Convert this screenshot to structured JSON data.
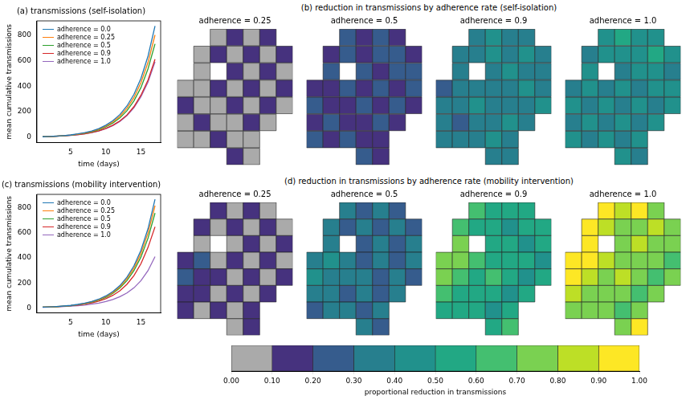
{
  "chart_data": [
    {
      "type": "line",
      "title": "(a) transmissions (self-isolation)",
      "x_label": "time (days)",
      "y_label": "mean cumulative transmissions",
      "x": [
        1,
        2,
        3,
        4,
        5,
        6,
        7,
        8,
        9,
        10,
        11,
        12,
        13,
        14,
        15,
        16,
        17
      ],
      "xlim": [
        0.2,
        17.8
      ],
      "xticks": [
        5,
        10,
        15
      ],
      "ylim": [
        -40,
        910
      ],
      "yticks": [
        0,
        200,
        400,
        600,
        800
      ],
      "legend": "upper left",
      "grid": false,
      "series": [
        {
          "name": "adherence = 0.0",
          "color": "#1f77b4",
          "values": [
            5,
            7,
            10,
            14,
            19,
            27,
            37,
            50,
            69,
            95,
            130,
            178,
            245,
            336,
            462,
            634,
            870
          ]
        },
        {
          "name": "adherence = 0.25",
          "color": "#ff7f0e",
          "values": [
            5,
            7,
            10,
            13,
            18,
            25,
            34,
            47,
            64,
            88,
            121,
            165,
            227,
            311,
            428,
            585,
            800
          ]
        },
        {
          "name": "adherence = 0.5",
          "color": "#2ca02c",
          "values": [
            5,
            7,
            9,
            13,
            17,
            24,
            32,
            44,
            59,
            82,
            112,
            152,
            208,
            285,
            390,
            535,
            730
          ]
        },
        {
          "name": "adherence = 0.9",
          "color": "#d62728",
          "values": [
            5,
            6,
            9,
            12,
            16,
            21,
            28,
            38,
            51,
            70,
            95,
            129,
            175,
            240,
            330,
            447,
            610
          ]
        },
        {
          "name": "adherence = 1.0",
          "color": "#9467bd",
          "values": [
            5,
            6,
            9,
            12,
            15,
            20,
            27,
            37,
            50,
            68,
            92,
            125,
            170,
            232,
            318,
            432,
            590
          ]
        }
      ]
    },
    {
      "type": "heatmap",
      "title": "(b) reduction in transmissions by adherence rate (self-isolation)",
      "panels": [
        {
          "title": "adherence = 0.25",
          "cells": [
            [
              null,
              null,
              0.05,
              0.15,
              0.05,
              0.15,
              null
            ],
            [
              null,
              0.05,
              0.15,
              0.05,
              0.15,
              0.05,
              0.15
            ],
            [
              null,
              0.05,
              null,
              0.15,
              0.05,
              0.15,
              0.05
            ],
            [
              0.05,
              0.05,
              0.15,
              0.05,
              0.15,
              0.05,
              0.15
            ],
            [
              0.15,
              0.05,
              0.05,
              0.15,
              0.05,
              0.15,
              0.05
            ],
            [
              0.05,
              0.15,
              0.05,
              0.05,
              0.15,
              0.05,
              null
            ],
            [
              0.05,
              0.05,
              0.15,
              0.05,
              0.05,
              null,
              null
            ],
            [
              null,
              null,
              null,
              0.15,
              0.05,
              null,
              null
            ]
          ]
        },
        {
          "title": "adherence = 0.5",
          "cells": [
            [
              null,
              null,
              0.25,
              0.15,
              0.25,
              0.15,
              null
            ],
            [
              null,
              0.15,
              0.25,
              0.15,
              0.25,
              0.25,
              0.15
            ],
            [
              null,
              0.25,
              null,
              0.25,
              0.15,
              0.25,
              0.25
            ],
            [
              0.15,
              0.15,
              0.25,
              0.15,
              0.25,
              0.15,
              0.25
            ],
            [
              0.25,
              0.15,
              0.15,
              0.25,
              0.15,
              0.25,
              0.15
            ],
            [
              0.15,
              0.25,
              0.15,
              0.15,
              0.25,
              0.15,
              null
            ],
            [
              0.25,
              0.15,
              0.25,
              0.15,
              0.15,
              null,
              null
            ],
            [
              null,
              null,
              null,
              0.25,
              0.15,
              null,
              null
            ]
          ]
        },
        {
          "title": "adherence = 0.9",
          "cells": [
            [
              null,
              null,
              0.35,
              0.45,
              0.35,
              0.35,
              null
            ],
            [
              null,
              0.35,
              0.35,
              0.45,
              0.35,
              0.45,
              0.35
            ],
            [
              null,
              0.35,
              null,
              0.35,
              0.45,
              0.35,
              0.35
            ],
            [
              0.25,
              0.35,
              0.35,
              0.35,
              0.35,
              0.45,
              0.35
            ],
            [
              0.35,
              0.35,
              0.45,
              0.35,
              0.35,
              0.35,
              0.45
            ],
            [
              0.35,
              0.25,
              0.35,
              0.35,
              0.45,
              0.35,
              null
            ],
            [
              0.35,
              0.35,
              0.35,
              0.45,
              0.35,
              null,
              null
            ],
            [
              null,
              null,
              null,
              0.35,
              0.35,
              null,
              null
            ]
          ]
        },
        {
          "title": "adherence = 1.0",
          "cells": [
            [
              null,
              null,
              0.45,
              0.55,
              0.45,
              0.45,
              null
            ],
            [
              null,
              0.35,
              0.45,
              0.45,
              0.45,
              0.55,
              0.45
            ],
            [
              null,
              0.45,
              null,
              0.35,
              0.45,
              0.45,
              0.35
            ],
            [
              0.35,
              0.45,
              0.35,
              0.45,
              0.35,
              0.45,
              0.45
            ],
            [
              0.45,
              0.35,
              0.45,
              0.35,
              0.45,
              0.35,
              0.45
            ],
            [
              0.35,
              0.45,
              0.35,
              0.45,
              0.35,
              0.45,
              null
            ],
            [
              0.45,
              0.35,
              0.45,
              0.35,
              0.45,
              null,
              null
            ],
            [
              null,
              null,
              null,
              0.45,
              0.35,
              null,
              null
            ]
          ]
        }
      ]
    },
    {
      "type": "line",
      "title": "(c) transmissions (mobility intervention)",
      "x_label": "time (days)",
      "y_label": "mean cumulative transmissions",
      "x": [
        1,
        2,
        3,
        4,
        5,
        6,
        7,
        8,
        9,
        10,
        11,
        12,
        13,
        14,
        15,
        16,
        17
      ],
      "xlim": [
        0.2,
        17.8
      ],
      "xticks": [
        5,
        10,
        15
      ],
      "ylim": [
        -40,
        910
      ],
      "yticks": [
        0,
        200,
        400,
        600,
        800
      ],
      "legend": "upper left",
      "grid": false,
      "series": [
        {
          "name": "adherence = 0.0",
          "color": "#1f77b4",
          "values": [
            5,
            7,
            10,
            14,
            19,
            27,
            37,
            50,
            69,
            95,
            130,
            178,
            245,
            336,
            462,
            634,
            870
          ]
        },
        {
          "name": "adherence = 0.25",
          "color": "#ff7f0e",
          "values": [
            5,
            7,
            10,
            13,
            18,
            25,
            35,
            48,
            65,
            90,
            123,
            169,
            232,
            318,
            437,
            600,
            820
          ]
        },
        {
          "name": "adherence = 0.5",
          "color": "#2ca02c",
          "values": [
            5,
            7,
            9,
            13,
            17,
            24,
            33,
            45,
            61,
            84,
            116,
            159,
            218,
            298,
            408,
            558,
            760
          ]
        },
        {
          "name": "adherence = 0.9",
          "color": "#d62728",
          "values": [
            5,
            6,
            9,
            12,
            16,
            22,
            29,
            39,
            53,
            73,
            100,
            137,
            188,
            258,
            354,
            484,
            650
          ]
        },
        {
          "name": "adherence = 1.0",
          "color": "#9467bd",
          "values": [
            4,
            6,
            8,
            10,
            13,
            17,
            22,
            29,
            38,
            50,
            67,
            89,
            119,
            160,
            218,
            298,
            410
          ]
        }
      ]
    },
    {
      "type": "heatmap",
      "title": "(d) reduction in transmissions by adherence rate (mobility intervention)",
      "panels": [
        {
          "title": "adherence = 0.25",
          "cells": [
            [
              null,
              null,
              0.15,
              0.05,
              0.15,
              0.05,
              null
            ],
            [
              null,
              0.15,
              0.05,
              0.15,
              0.05,
              0.15,
              0.05
            ],
            [
              null,
              0.05,
              null,
              0.05,
              0.15,
              0.05,
              0.15
            ],
            [
              0.15,
              0.25,
              0.05,
              0.15,
              0.05,
              0.15,
              0.05
            ],
            [
              0.25,
              0.15,
              0.15,
              0.05,
              0.15,
              0.05,
              0.15
            ],
            [
              0.15,
              0.15,
              0.05,
              0.15,
              0.05,
              0.15,
              null
            ],
            [
              0.15,
              0.05,
              0.15,
              0.05,
              0.15,
              null,
              null
            ],
            [
              null,
              null,
              null,
              0.05,
              0.15,
              null,
              null
            ]
          ]
        },
        {
          "title": "adherence = 0.5",
          "cells": [
            [
              null,
              null,
              0.35,
              0.25,
              0.35,
              0.25,
              null
            ],
            [
              null,
              0.35,
              0.25,
              0.35,
              0.25,
              0.35,
              0.25
            ],
            [
              null,
              0.35,
              null,
              0.25,
              0.35,
              0.25,
              0.35
            ],
            [
              0.35,
              0.45,
              0.35,
              0.25,
              0.35,
              0.25,
              0.35
            ],
            [
              0.45,
              0.35,
              0.35,
              0.35,
              0.25,
              0.35,
              0.25
            ],
            [
              0.35,
              0.35,
              0.25,
              0.35,
              0.25,
              0.35,
              null
            ],
            [
              0.25,
              0.35,
              0.35,
              0.25,
              0.35,
              null,
              null
            ],
            [
              null,
              null,
              null,
              0.35,
              0.25,
              null,
              null
            ]
          ]
        },
        {
          "title": "adherence = 0.9",
          "cells": [
            [
              null,
              null,
              0.65,
              0.55,
              0.55,
              0.55,
              null
            ],
            [
              null,
              0.65,
              0.55,
              0.55,
              0.45,
              0.55,
              0.55
            ],
            [
              null,
              0.75,
              null,
              0.55,
              0.55,
              0.45,
              0.55
            ],
            [
              0.75,
              0.75,
              0.65,
              0.55,
              0.55,
              0.55,
              0.45
            ],
            [
              0.75,
              0.65,
              0.55,
              0.65,
              0.55,
              0.45,
              0.55
            ],
            [
              0.65,
              0.55,
              0.55,
              0.55,
              0.45,
              0.55,
              null
            ],
            [
              0.55,
              0.55,
              0.55,
              0.45,
              0.55,
              null,
              null
            ],
            [
              null,
              null,
              null,
              0.55,
              0.65,
              null,
              null
            ]
          ]
        },
        {
          "title": "adherence = 1.0",
          "cells": [
            [
              null,
              null,
              0.95,
              0.85,
              0.95,
              0.75,
              null
            ],
            [
              null,
              0.95,
              0.85,
              0.75,
              0.75,
              0.85,
              0.75
            ],
            [
              null,
              0.95,
              null,
              0.75,
              0.85,
              0.75,
              0.75
            ],
            [
              0.95,
              0.95,
              0.85,
              0.75,
              0.75,
              0.75,
              0.65
            ],
            [
              0.95,
              0.85,
              0.75,
              0.85,
              0.75,
              0.65,
              0.75
            ],
            [
              0.85,
              0.75,
              0.75,
              0.75,
              0.65,
              0.75,
              null
            ],
            [
              0.75,
              0.75,
              0.75,
              0.65,
              0.75,
              null,
              null
            ],
            [
              null,
              null,
              null,
              0.75,
              0.95,
              null,
              null
            ]
          ]
        }
      ]
    },
    {
      "type": "colorbar",
      "label": "proportional reduction in transmissions",
      "bins": [
        0,
        0.1,
        0.2,
        0.3,
        0.4,
        0.5,
        0.6,
        0.7,
        0.8,
        0.9,
        1.0
      ],
      "colors": [
        "#aaaaaa",
        "#46327e",
        "#365c8d",
        "#277f8e",
        "#21918c",
        "#22a884",
        "#44bf70",
        "#7ad151",
        "#bddf26",
        "#fde725"
      ],
      "xlim": [
        0,
        1
      ],
      "xticks": [
        {
          "value": 0,
          "label": "0.00"
        },
        {
          "value": 0.1,
          "label": "0.10"
        },
        {
          "value": 0.2,
          "label": "0.20"
        },
        {
          "value": 0.3,
          "label": "0.30"
        },
        {
          "value": 0.4,
          "label": "0.40"
        },
        {
          "value": 0.5,
          "label": "0.50"
        },
        {
          "value": 0.6,
          "label": "0.60"
        },
        {
          "value": 0.7,
          "label": "0.70"
        },
        {
          "value": 0.8,
          "label": "0.80"
        },
        {
          "value": 0.9,
          "label": "0.90"
        },
        {
          "value": 1.0,
          "label": "1.00"
        }
      ]
    }
  ]
}
